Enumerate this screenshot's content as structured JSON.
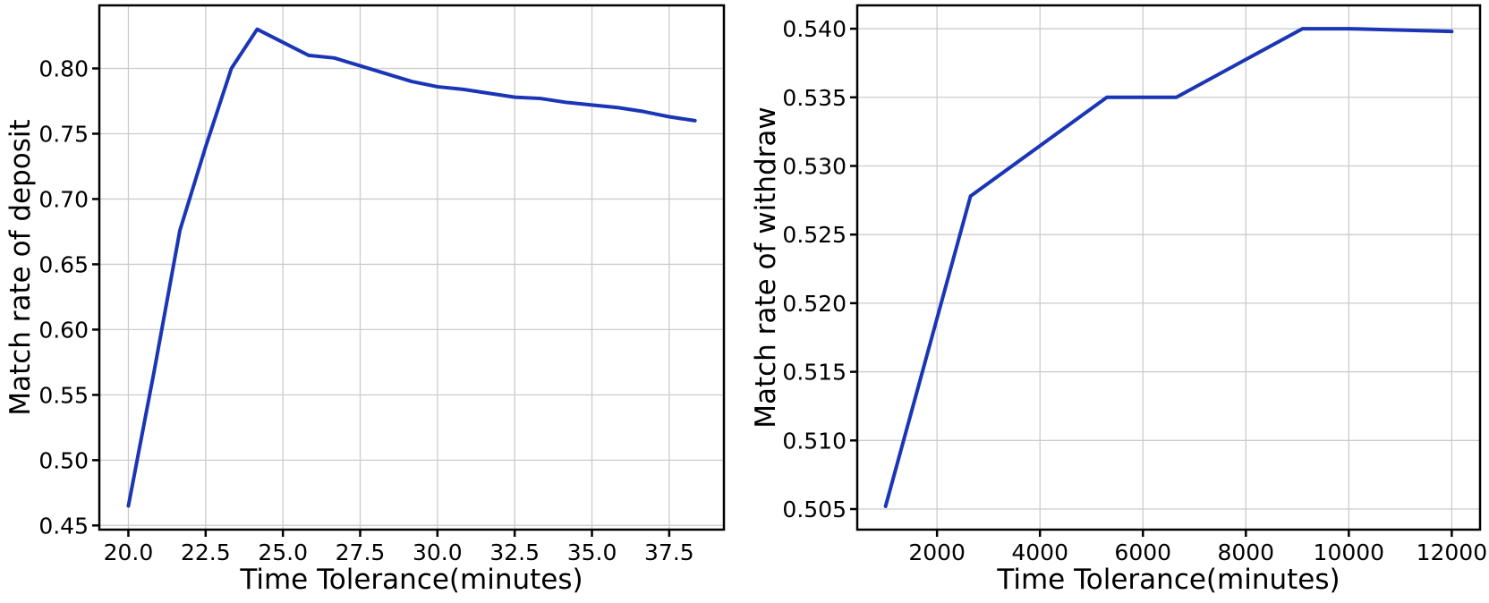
{
  "figure": {
    "background": "#ffffff",
    "line_color": "#1a35b5",
    "grid_color": "#cccccc",
    "axis_color": "#000000"
  },
  "chart_data": [
    {
      "type": "line",
      "name": "deposit",
      "title": "",
      "xlabel": "Time Tolerance(minutes)",
      "ylabel": "Match rate of deposit",
      "x": [
        20.0,
        20.833,
        21.667,
        22.5,
        23.333,
        24.167,
        25.0,
        25.833,
        26.667,
        27.5,
        28.333,
        29.167,
        30.0,
        30.833,
        31.667,
        32.5,
        33.333,
        34.167,
        35.0,
        35.833,
        36.667,
        37.5,
        38.333
      ],
      "y": [
        0.465,
        0.568,
        0.676,
        0.74,
        0.8,
        0.83,
        0.82,
        0.81,
        0.808,
        0.802,
        0.796,
        0.79,
        0.786,
        0.784,
        0.781,
        0.778,
        0.777,
        0.774,
        0.772,
        0.77,
        0.767,
        0.763,
        0.76
      ],
      "xlim": [
        19.06,
        39.27
      ],
      "ylim": [
        0.4468,
        0.8483
      ],
      "xticks": [
        20.0,
        22.5,
        25.0,
        27.5,
        30.0,
        32.5,
        35.0,
        37.5
      ],
      "xtick_labels": [
        "20.0",
        "22.5",
        "25.0",
        "27.5",
        "30.0",
        "32.5",
        "35.0",
        "37.5"
      ],
      "yticks": [
        0.45,
        0.5,
        0.55,
        0.6,
        0.65,
        0.7,
        0.75,
        0.8
      ],
      "ytick_labels": [
        "0.45",
        "0.50",
        "0.55",
        "0.60",
        "0.65",
        "0.70",
        "0.75",
        "0.80"
      ],
      "grid": true,
      "legend": null,
      "line_color": "#1a35b5"
    },
    {
      "type": "line",
      "name": "withdraw",
      "title": "",
      "xlabel": "Time Tolerance(minutes)",
      "ylabel": "Match rate of withdraw",
      "x": [
        1000,
        2650,
        5300,
        6650,
        9100,
        10000,
        12000
      ],
      "y": [
        0.5052,
        0.5278,
        0.535,
        0.535,
        0.54,
        0.54,
        0.5398
      ],
      "xlim": [
        450,
        12550
      ],
      "ylim": [
        0.5035,
        0.5417
      ],
      "xticks": [
        2000,
        4000,
        6000,
        8000,
        10000,
        12000
      ],
      "xtick_labels": [
        "2000",
        "4000",
        "6000",
        "8000",
        "10000",
        "12000"
      ],
      "yticks": [
        0.505,
        0.51,
        0.515,
        0.52,
        0.525,
        0.53,
        0.535,
        0.54
      ],
      "ytick_labels": [
        "0.505",
        "0.510",
        "0.515",
        "0.520",
        "0.525",
        "0.530",
        "0.535",
        "0.540"
      ],
      "grid": true,
      "legend": null,
      "line_color": "#1a35b5"
    }
  ]
}
